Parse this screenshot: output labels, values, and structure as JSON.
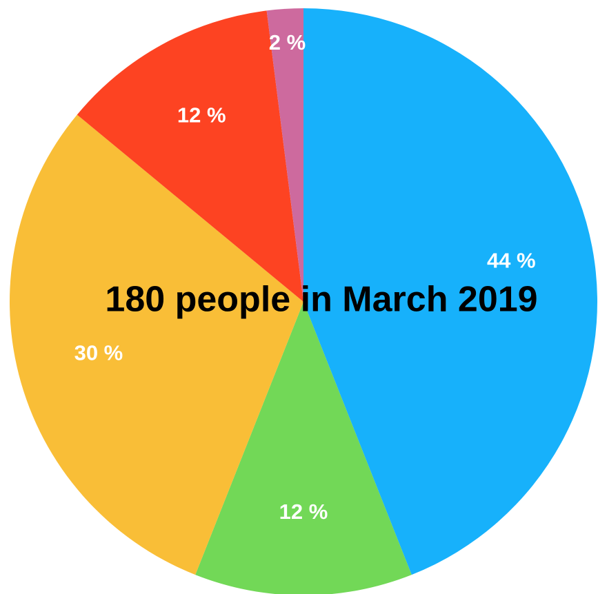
{
  "chart_data": {
    "type": "pie",
    "title": "180 people in March 2019",
    "slices": [
      {
        "value": 44,
        "label": "44 %",
        "color": "#17b1fb"
      },
      {
        "value": 12,
        "label": "12 %",
        "color": "#72d857"
      },
      {
        "value": 30,
        "label": "30 %",
        "color": "#f9be37"
      },
      {
        "value": 12,
        "label": "12 %",
        "color": "#fd4322"
      },
      {
        "value": 2,
        "label": "2 %",
        "color": "#cd6a9e"
      }
    ],
    "start": "top",
    "direction": "clockwise"
  }
}
